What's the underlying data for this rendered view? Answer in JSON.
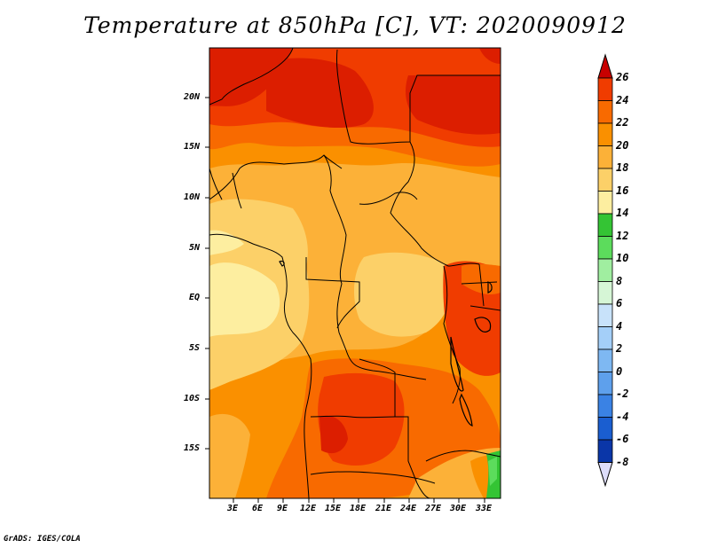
{
  "title": "Temperature at 850hPa [C], VT: 2020090912",
  "credit": "GrADS: IGES/COLA",
  "map": {
    "lat_labels": [
      "20N",
      "15N",
      "10N",
      "5N",
      "EQ",
      "5S",
      "10S",
      "15S"
    ],
    "lon_labels": [
      "3E",
      "6E",
      "9E",
      "12E",
      "15E",
      "18E",
      "21E",
      "24E",
      "27E",
      "30E",
      "33E"
    ]
  },
  "colorbar": {
    "levels": [
      "26",
      "24",
      "22",
      "20",
      "18",
      "16",
      "14",
      "12",
      "10",
      "8",
      "6",
      "4",
      "2",
      "0",
      "-2",
      "-4",
      "-6",
      "-8"
    ],
    "colors": [
      "#dc1e00",
      "#f03c00",
      "#f86a00",
      "#fa9000",
      "#fcb138",
      "#fcd068",
      "#fdeea0",
      "#34c434",
      "#5cdc5c",
      "#a0eea0",
      "#d6f6d6",
      "#c8e2fa",
      "#a4cff8",
      "#7eb8f2",
      "#5ea0ec",
      "#3a82e4",
      "#1a5ed0",
      "#0a36a8",
      "#000a6a"
    ],
    "top_color": "#c80000",
    "bottom_color": "#ddddfa"
  }
}
